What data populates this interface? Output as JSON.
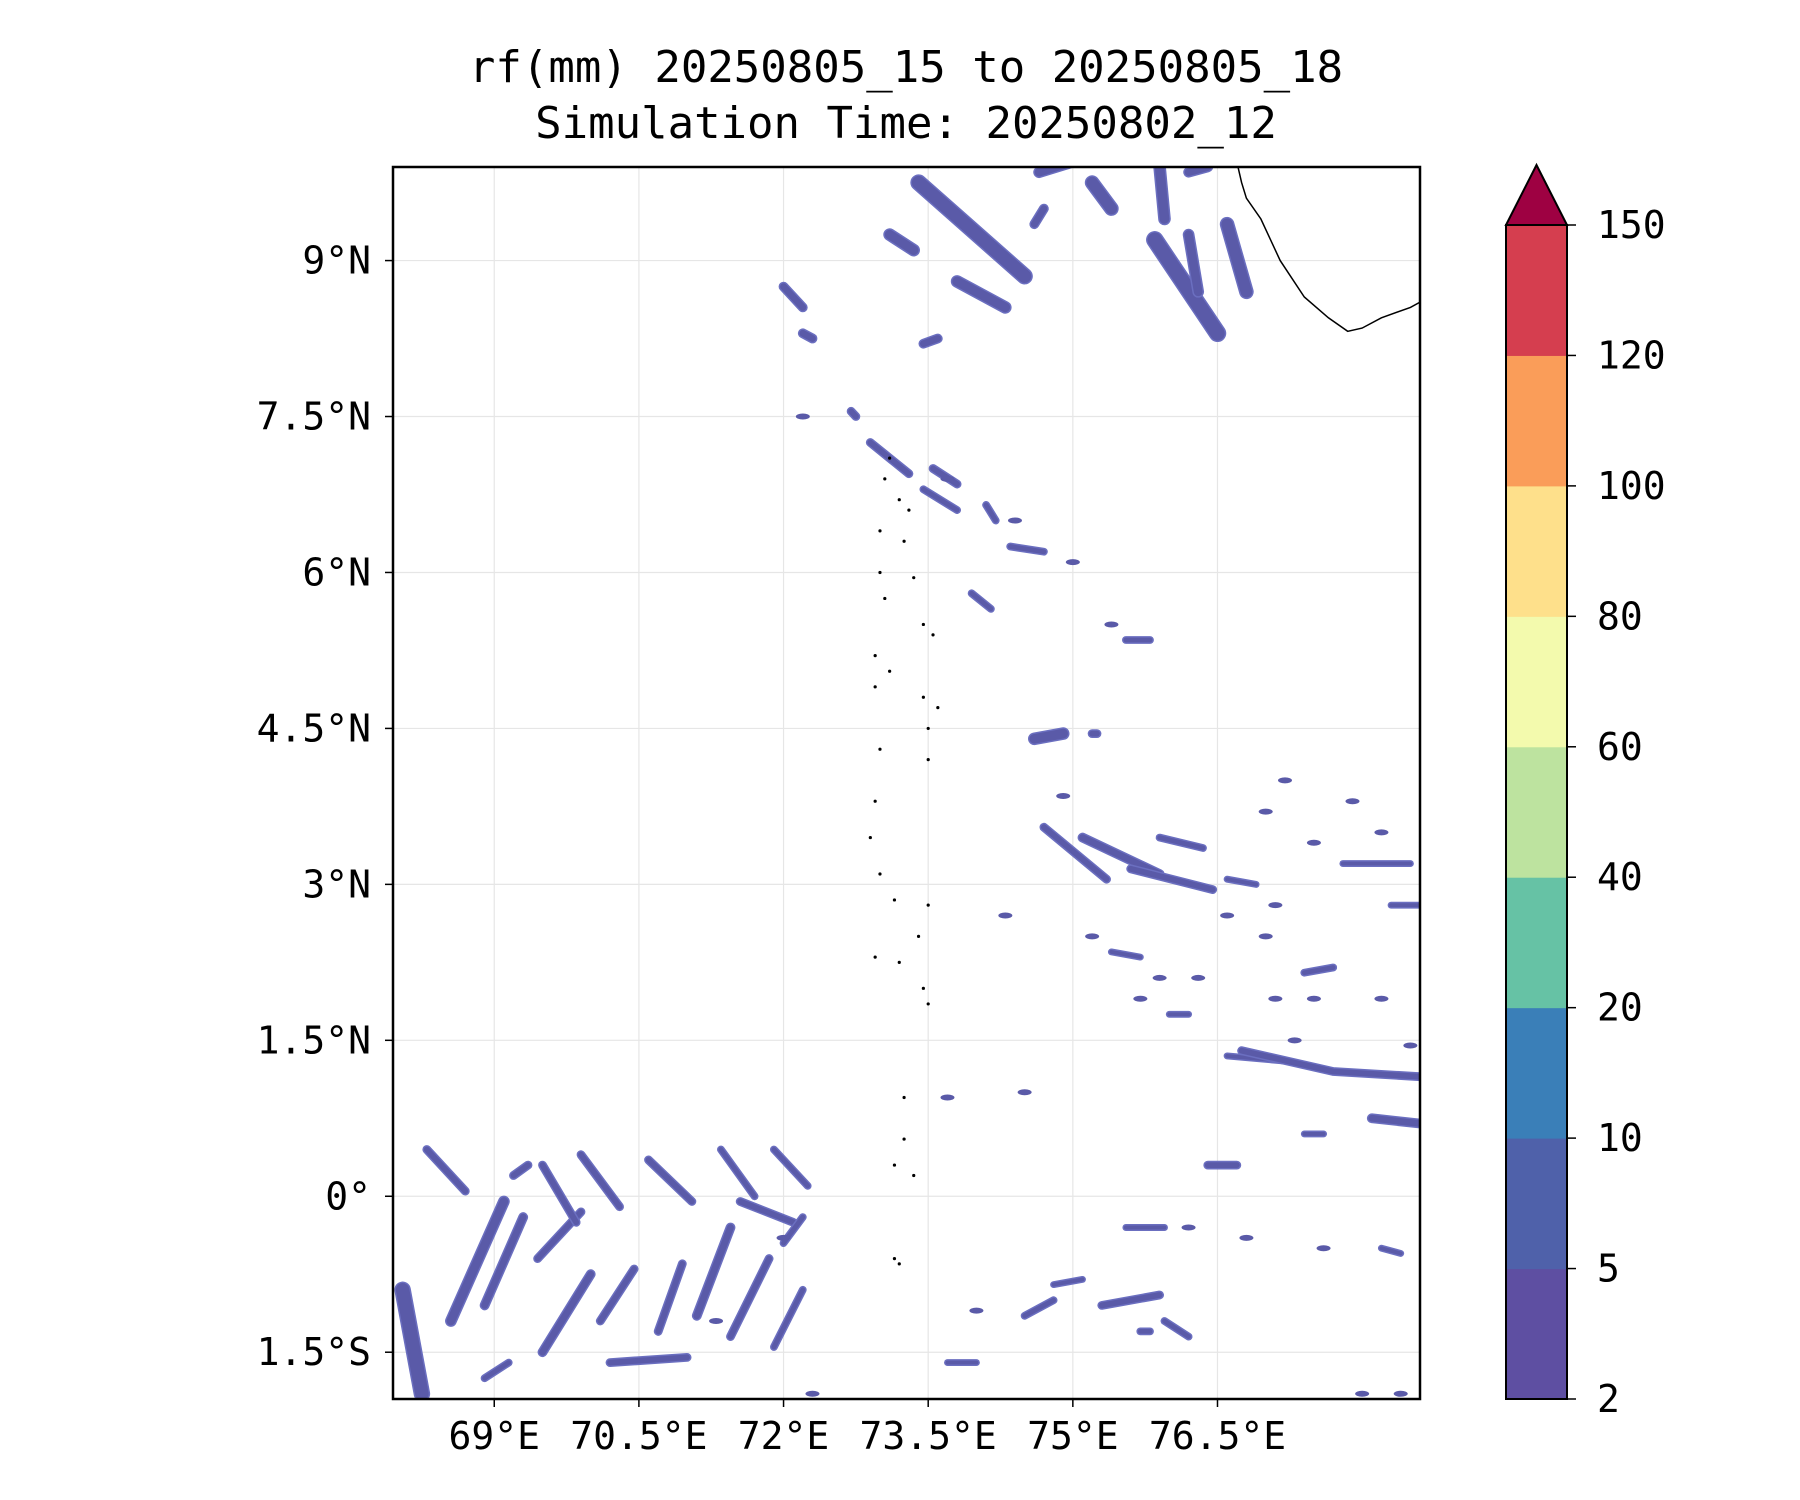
{
  "chart_data": {
    "type": "heatmap",
    "title": "rf(mm) 20250805_15 to 20250805_18",
    "subtitle": "Simulation Time: 20250802_12",
    "xlabel": "",
    "ylabel": "",
    "xlim": [
      67.95,
      78.6
    ],
    "ylim": [
      -1.95,
      9.9
    ],
    "x_ticks": [
      {
        "value": 69.0,
        "label": "69°E"
      },
      {
        "value": 70.5,
        "label": "70.5°E"
      },
      {
        "value": 72.0,
        "label": "72°E"
      },
      {
        "value": 73.5,
        "label": "73.5°E"
      },
      {
        "value": 75.0,
        "label": "75°E"
      },
      {
        "value": 76.5,
        "label": "76.5°E"
      }
    ],
    "y_ticks": [
      {
        "value": 9.0,
        "label": "9°N"
      },
      {
        "value": 7.5,
        "label": "7.5°N"
      },
      {
        "value": 6.0,
        "label": "6°N"
      },
      {
        "value": 4.5,
        "label": "4.5°N"
      },
      {
        "value": 3.0,
        "label": "3°N"
      },
      {
        "value": 1.5,
        "label": "1.5°N"
      },
      {
        "value": 0.0,
        "label": "0°"
      },
      {
        "value": -1.5,
        "label": "1.5°S"
      }
    ],
    "grid": true,
    "colorbar": {
      "levels": [
        2,
        5,
        10,
        20,
        40,
        60,
        80,
        100,
        120,
        150
      ],
      "labels": [
        "2",
        "5",
        "10",
        "20",
        "40",
        "60",
        "80",
        "100",
        "120",
        "150"
      ],
      "colors": [
        "#5e4fa2",
        "#4f61aa",
        "#3a7fb8",
        "#66c2a5",
        "#bde39f",
        "#f3faad",
        "#fee08b",
        "#fa9d59",
        "#d53e4f",
        "#9e0142"
      ],
      "extend": "max"
    },
    "rain_fill_color": "#5a5aa8",
    "rain_edge_color": "#6b6fc0",
    "rain_bands": [
      {
        "points": [
          [
            73.4,
            9.75
          ],
          [
            74.5,
            8.85
          ]
        ],
        "width": 0.14
      },
      {
        "points": [
          [
            73.8,
            8.8
          ],
          [
            74.3,
            8.55
          ]
        ],
        "width": 0.1
      },
      {
        "points": [
          [
            73.1,
            9.25
          ],
          [
            73.35,
            9.1
          ]
        ],
        "width": 0.1
      },
      {
        "points": [
          [
            72.0,
            8.75
          ],
          [
            72.2,
            8.55
          ]
        ],
        "width": 0.07
      },
      {
        "points": [
          [
            72.2,
            8.3
          ],
          [
            72.3,
            8.25
          ]
        ],
        "width": 0.07
      },
      {
        "points": [
          [
            73.45,
            8.2
          ],
          [
            73.6,
            8.25
          ]
        ],
        "width": 0.07
      },
      {
        "points": [
          [
            75.85,
            9.2
          ],
          [
            76.5,
            8.3
          ]
        ],
        "width": 0.15
      },
      {
        "points": [
          [
            76.6,
            9.35
          ],
          [
            76.8,
            8.7
          ]
        ],
        "width": 0.12
      },
      {
        "points": [
          [
            76.2,
            9.25
          ],
          [
            76.3,
            8.7
          ]
        ],
        "width": 0.09
      },
      {
        "points": [
          [
            75.2,
            9.75
          ],
          [
            75.4,
            9.5
          ]
        ],
        "width": 0.12
      },
      {
        "points": [
          [
            74.65,
            9.85
          ],
          [
            75.0,
            9.95
          ]
        ],
        "width": 0.09
      },
      {
        "points": [
          [
            75.9,
            9.9
          ],
          [
            75.95,
            9.4
          ]
        ],
        "width": 0.1
      },
      {
        "points": [
          [
            76.2,
            9.85
          ],
          [
            76.4,
            9.9
          ]
        ],
        "width": 0.08
      },
      {
        "points": [
          [
            74.7,
            9.5
          ],
          [
            74.6,
            9.35
          ]
        ],
        "width": 0.07
      },
      {
        "points": [
          [
            72.7,
            7.55
          ],
          [
            72.75,
            7.5
          ]
        ],
        "width": 0.06
      },
      {
        "points": [
          [
            72.9,
            7.25
          ],
          [
            73.3,
            6.95
          ]
        ],
        "width": 0.06
      },
      {
        "points": [
          [
            73.55,
            7.0
          ],
          [
            73.8,
            6.85
          ]
        ],
        "width": 0.06
      },
      {
        "points": [
          [
            73.45,
            6.8
          ],
          [
            73.8,
            6.6
          ]
        ],
        "width": 0.05
      },
      {
        "points": [
          [
            74.1,
            6.65
          ],
          [
            74.2,
            6.5
          ]
        ],
        "width": 0.05
      },
      {
        "points": [
          [
            74.35,
            6.25
          ],
          [
            74.7,
            6.2
          ]
        ],
        "width": 0.05
      },
      {
        "points": [
          [
            73.95,
            5.8
          ],
          [
            74.15,
            5.65
          ]
        ],
        "width": 0.05
      },
      {
        "points": [
          [
            75.55,
            5.35
          ],
          [
            75.8,
            5.35
          ]
        ],
        "width": 0.05
      },
      {
        "points": [
          [
            75.25,
            4.45
          ],
          [
            75.2,
            4.45
          ]
        ],
        "width": 0.06
      },
      {
        "points": [
          [
            74.6,
            4.4
          ],
          [
            74.9,
            4.45
          ]
        ],
        "width": 0.1
      },
      {
        "points": [
          [
            74.7,
            3.55
          ],
          [
            75.35,
            3.05
          ]
        ],
        "width": 0.06
      },
      {
        "points": [
          [
            75.1,
            3.45
          ],
          [
            75.9,
            3.1
          ]
        ],
        "width": 0.07
      },
      {
        "points": [
          [
            75.6,
            3.15
          ],
          [
            76.45,
            2.95
          ]
        ],
        "width": 0.06
      },
      {
        "points": [
          [
            75.9,
            3.45
          ],
          [
            76.35,
            3.35
          ]
        ],
        "width": 0.05
      },
      {
        "points": [
          [
            77.8,
            3.2
          ],
          [
            78.5,
            3.2
          ]
        ],
        "width": 0.04
      },
      {
        "points": [
          [
            78.3,
            2.8
          ],
          [
            78.6,
            2.8
          ]
        ],
        "width": 0.04
      },
      {
        "points": [
          [
            76.6,
            3.05
          ],
          [
            76.9,
            3.0
          ]
        ],
        "width": 0.04
      },
      {
        "points": [
          [
            75.4,
            2.35
          ],
          [
            75.7,
            2.3
          ]
        ],
        "width": 0.04
      },
      {
        "points": [
          [
            77.4,
            2.15
          ],
          [
            77.7,
            2.2
          ]
        ],
        "width": 0.05
      },
      {
        "points": [
          [
            76.0,
            1.75
          ],
          [
            76.2,
            1.75
          ]
        ],
        "width": 0.04
      },
      {
        "points": [
          [
            76.6,
            1.35
          ],
          [
            77.2,
            1.3
          ]
        ],
        "width": 0.04
      },
      {
        "points": [
          [
            76.75,
            1.4
          ],
          [
            77.7,
            1.2
          ],
          [
            78.6,
            1.15
          ]
        ],
        "width": 0.06
      },
      {
        "points": [
          [
            78.1,
            0.75
          ],
          [
            78.6,
            0.7
          ]
        ],
        "width": 0.07
      },
      {
        "points": [
          [
            76.4,
            0.3
          ],
          [
            76.7,
            0.3
          ]
        ],
        "width": 0.06
      },
      {
        "points": [
          [
            77.4,
            0.6
          ],
          [
            77.6,
            0.6
          ]
        ],
        "width": 0.04
      },
      {
        "points": [
          [
            75.55,
            -0.3
          ],
          [
            75.95,
            -0.3
          ]
        ],
        "width": 0.04
      },
      {
        "points": [
          [
            75.3,
            -1.05
          ],
          [
            75.9,
            -0.95
          ]
        ],
        "width": 0.06
      },
      {
        "points": [
          [
            75.7,
            -1.3
          ],
          [
            75.8,
            -1.3
          ]
        ],
        "width": 0.05
      },
      {
        "points": [
          [
            75.95,
            -1.2
          ],
          [
            76.2,
            -1.35
          ]
        ],
        "width": 0.05
      },
      {
        "points": [
          [
            74.5,
            -1.15
          ],
          [
            74.8,
            -1.0
          ]
        ],
        "width": 0.05
      },
      {
        "points": [
          [
            74.8,
            -0.85
          ],
          [
            75.1,
            -0.8
          ]
        ],
        "width": 0.04
      },
      {
        "points": [
          [
            73.7,
            -1.6
          ],
          [
            74.0,
            -1.6
          ]
        ],
        "width": 0.04
      },
      {
        "points": [
          [
            78.2,
            -0.5
          ],
          [
            78.4,
            -0.55
          ]
        ],
        "width": 0.04
      },
      {
        "points": [
          [
            68.05,
            -0.9
          ],
          [
            68.25,
            -1.9
          ]
        ],
        "width": 0.14
      },
      {
        "points": [
          [
            68.3,
            0.45
          ],
          [
            68.7,
            0.05
          ]
        ],
        "width": 0.06
      },
      {
        "points": [
          [
            68.55,
            -1.2
          ],
          [
            69.1,
            -0.05
          ]
        ],
        "width": 0.09
      },
      {
        "points": [
          [
            68.9,
            -1.05
          ],
          [
            69.3,
            -0.2
          ]
        ],
        "width": 0.07
      },
      {
        "points": [
          [
            69.2,
            0.2
          ],
          [
            69.35,
            0.3
          ]
        ],
        "width": 0.06
      },
      {
        "points": [
          [
            69.45,
            -0.6
          ],
          [
            69.9,
            -0.15
          ]
        ],
        "width": 0.06
      },
      {
        "points": [
          [
            69.5,
            -1.5
          ],
          [
            70.0,
            -0.75
          ]
        ],
        "width": 0.07
      },
      {
        "points": [
          [
            69.9,
            0.4
          ],
          [
            70.3,
            -0.1
          ]
        ],
        "width": 0.06
      },
      {
        "points": [
          [
            70.1,
            -1.2
          ],
          [
            70.45,
            -0.7
          ]
        ],
        "width": 0.06
      },
      {
        "points": [
          [
            70.6,
            0.35
          ],
          [
            71.05,
            -0.05
          ]
        ],
        "width": 0.06
      },
      {
        "points": [
          [
            70.7,
            -1.3
          ],
          [
            70.95,
            -0.65
          ]
        ],
        "width": 0.06
      },
      {
        "points": [
          [
            71.1,
            -1.15
          ],
          [
            71.45,
            -0.3
          ]
        ],
        "width": 0.07
      },
      {
        "points": [
          [
            71.45,
            -1.35
          ],
          [
            71.85,
            -0.6
          ]
        ],
        "width": 0.06
      },
      {
        "points": [
          [
            71.55,
            -0.05
          ],
          [
            72.1,
            -0.25
          ]
        ],
        "width": 0.06
      },
      {
        "points": [
          [
            71.9,
            -1.45
          ],
          [
            72.2,
            -0.9
          ]
        ],
        "width": 0.05
      },
      {
        "points": [
          [
            72.0,
            -0.45
          ],
          [
            72.2,
            -0.2
          ]
        ],
        "width": 0.05
      },
      {
        "points": [
          [
            70.2,
            -1.6
          ],
          [
            71.0,
            -1.55
          ]
        ],
        "width": 0.06
      },
      {
        "points": [
          [
            69.5,
            0.3
          ],
          [
            69.85,
            -0.25
          ]
        ],
        "width": 0.06
      },
      {
        "points": [
          [
            68.9,
            -1.75
          ],
          [
            69.15,
            -1.6
          ]
        ],
        "width": 0.05
      },
      {
        "points": [
          [
            71.9,
            0.45
          ],
          [
            72.25,
            0.1
          ]
        ],
        "width": 0.05
      },
      {
        "points": [
          [
            71.35,
            0.45
          ],
          [
            71.7,
            0.0
          ]
        ],
        "width": 0.05
      }
    ],
    "coastline": [
      [
        76.7,
        9.95
      ],
      [
        76.75,
        9.75
      ],
      [
        76.8,
        9.6
      ],
      [
        76.95,
        9.4
      ],
      [
        77.15,
        9.0
      ],
      [
        77.4,
        8.65
      ],
      [
        77.65,
        8.45
      ],
      [
        77.85,
        8.32
      ],
      [
        78.0,
        8.35
      ],
      [
        78.2,
        8.45
      ],
      [
        78.5,
        8.55
      ],
      [
        78.6,
        8.6
      ]
    ],
    "islands": [
      [
        73.1,
        7.1
      ],
      [
        73.05,
        6.9
      ],
      [
        73.2,
        6.7
      ],
      [
        73.3,
        6.6
      ],
      [
        73.0,
        6.4
      ],
      [
        73.25,
        6.3
      ],
      [
        73.0,
        6.0
      ],
      [
        73.35,
        5.95
      ],
      [
        73.05,
        5.75
      ],
      [
        73.45,
        5.5
      ],
      [
        73.55,
        5.4
      ],
      [
        72.95,
        5.2
      ],
      [
        73.1,
        5.05
      ],
      [
        72.95,
        4.9
      ],
      [
        73.45,
        4.8
      ],
      [
        73.6,
        4.7
      ],
      [
        73.5,
        4.5
      ],
      [
        73.0,
        4.3
      ],
      [
        73.5,
        4.2
      ],
      [
        72.95,
        3.8
      ],
      [
        72.9,
        3.45
      ],
      [
        73.0,
        3.1
      ],
      [
        73.15,
        2.85
      ],
      [
        73.5,
        2.8
      ],
      [
        73.4,
        2.5
      ],
      [
        72.95,
        2.3
      ],
      [
        73.2,
        2.25
      ],
      [
        73.45,
        2.0
      ],
      [
        73.5,
        1.85
      ],
      [
        73.25,
        0.95
      ],
      [
        73.25,
        0.55
      ],
      [
        73.15,
        0.3
      ],
      [
        73.35,
        0.2
      ],
      [
        73.15,
        -0.6
      ],
      [
        73.2,
        -0.65
      ]
    ],
    "scatter_specks": [
      [
        72.2,
        7.5
      ],
      [
        73.7,
        6.9
      ],
      [
        74.4,
        6.5
      ],
      [
        75.0,
        6.1
      ],
      [
        75.4,
        5.5
      ],
      [
        74.9,
        3.85
      ],
      [
        77.2,
        4.0
      ],
      [
        77.9,
        3.8
      ],
      [
        77.0,
        3.7
      ],
      [
        77.5,
        3.4
      ],
      [
        78.2,
        3.5
      ],
      [
        74.3,
        2.7
      ],
      [
        76.6,
        2.7
      ],
      [
        77.1,
        2.8
      ],
      [
        75.2,
        2.5
      ],
      [
        77.0,
        2.5
      ],
      [
        75.9,
        2.1
      ],
      [
        76.3,
        2.1
      ],
      [
        75.7,
        1.9
      ],
      [
        77.1,
        1.9
      ],
      [
        77.5,
        1.9
      ],
      [
        78.2,
        1.9
      ],
      [
        77.3,
        1.5
      ],
      [
        78.5,
        1.45
      ],
      [
        74.5,
        1.0
      ],
      [
        73.7,
        0.95
      ],
      [
        72.0,
        -0.4
      ],
      [
        71.3,
        -1.2
      ],
      [
        72.3,
        -1.9
      ],
      [
        74.0,
        -1.1
      ],
      [
        76.2,
        -0.3
      ],
      [
        76.8,
        -0.4
      ],
      [
        77.6,
        -0.5
      ],
      [
        78.0,
        -1.9
      ],
      [
        78.4,
        -1.9
      ]
    ]
  }
}
